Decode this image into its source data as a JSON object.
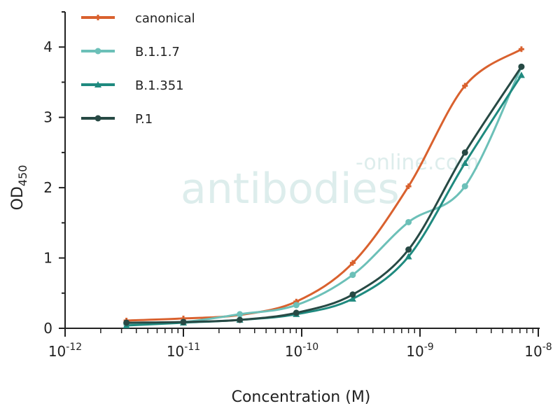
{
  "chart_data": {
    "type": "line",
    "title": "",
    "xlabel": "Concentration (M)",
    "ylabel": {
      "main": "OD",
      "subscript": "450"
    },
    "xscale": "log",
    "xlim": [
      1e-12,
      1e-08
    ],
    "ylim": [
      0,
      4.5
    ],
    "x_ticks": [
      {
        "base": "10",
        "exp": "-12",
        "value": -12
      },
      {
        "base": "10",
        "exp": "-11",
        "value": -11
      },
      {
        "base": "10",
        "exp": "-10",
        "value": -10
      },
      {
        "base": "10",
        "exp": "-9",
        "value": -9
      },
      {
        "base": "10",
        "exp": "-8",
        "value": -8
      }
    ],
    "y_ticks": [
      "0",
      "1",
      "2",
      "3",
      "4"
    ],
    "grid": false,
    "legend_position": "top-left",
    "x": [
      3.3e-12,
      1e-11,
      3e-11,
      9e-11,
      2.7e-10,
      8e-10,
      2.4e-09,
      7.2e-09
    ],
    "series": [
      {
        "name": "canonical",
        "color": "#d9612e",
        "marker": "plus",
        "values": [
          0.11,
          0.14,
          0.19,
          0.38,
          0.93,
          2.02,
          3.45,
          3.97
        ]
      },
      {
        "name": "B.1.1.7",
        "color": "#6cc0b8",
        "marker": "circle",
        "values": [
          0.06,
          0.09,
          0.2,
          0.33,
          0.76,
          1.51,
          2.02,
          3.72
        ]
      },
      {
        "name": "B.1.351",
        "color": "#1f8a7f",
        "marker": "triangle",
        "values": [
          0.04,
          0.08,
          0.12,
          0.2,
          0.42,
          1.02,
          2.35,
          3.6
        ]
      },
      {
        "name": "P.1",
        "color": "#274944",
        "marker": "circle",
        "values": [
          0.08,
          0.09,
          0.12,
          0.22,
          0.48,
          1.12,
          2.5,
          3.72
        ]
      }
    ]
  },
  "watermark": {
    "main": "antibodies",
    "suffix": "-online.com"
  }
}
